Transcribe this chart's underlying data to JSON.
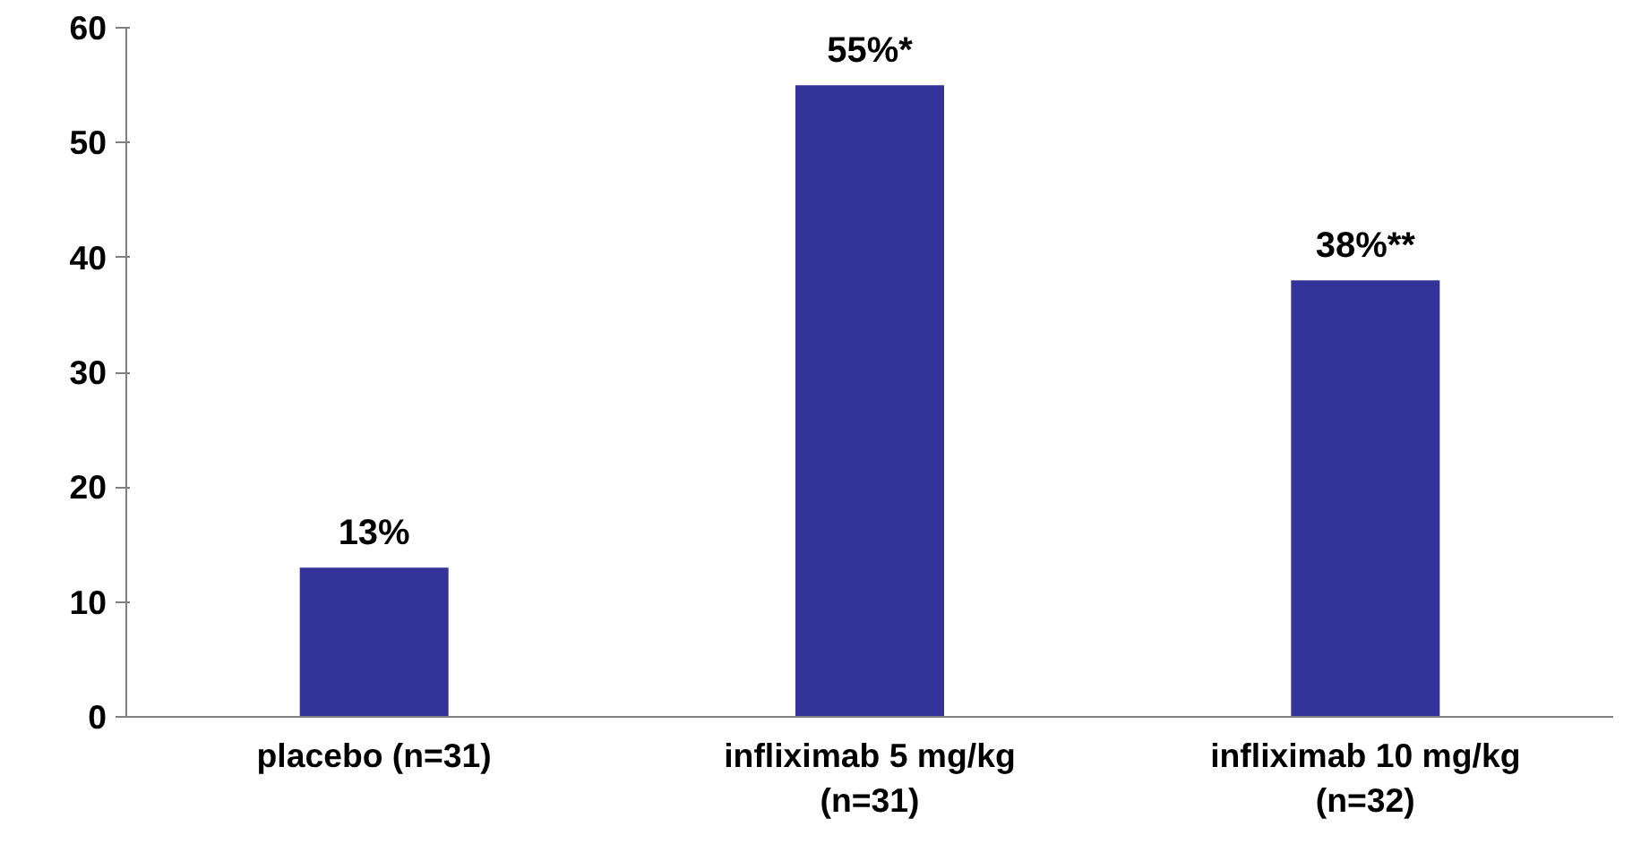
{
  "chart_data": {
    "type": "bar",
    "categories": [
      "placebo (n=31)",
      "infliximab 5 mg/kg (n=31)",
      "infliximab 10 mg/kg (n=32)"
    ],
    "values": [
      13,
      55,
      38
    ],
    "color": "#333399",
    "value_labels": [
      "13%",
      "55%*",
      "38%**"
    ],
    "ylim": [
      0,
      60
    ],
    "yticks": [
      0,
      10,
      20,
      30,
      40,
      50,
      60
    ],
    "grid": false
  }
}
